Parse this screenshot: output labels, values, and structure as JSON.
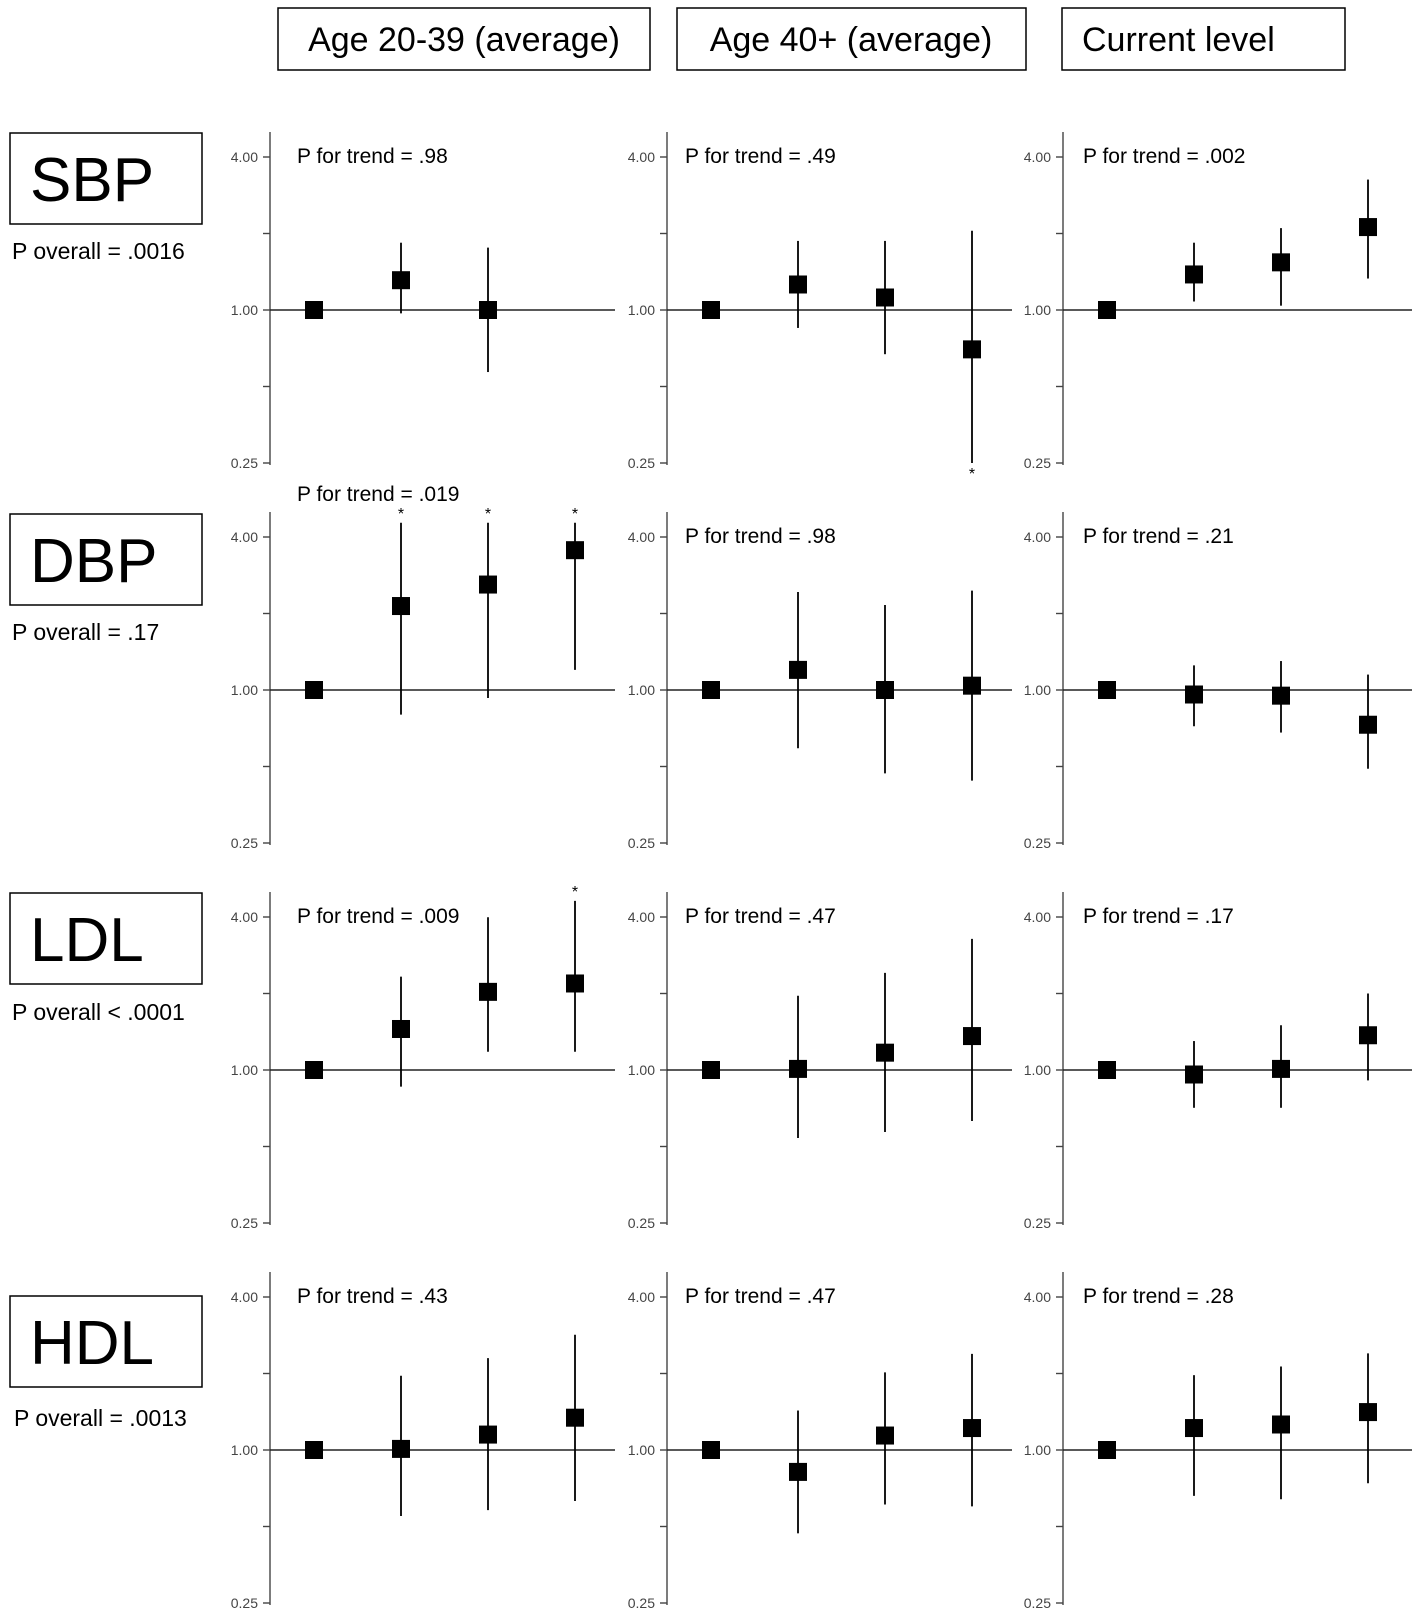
{
  "columns": [
    {
      "label": "Age 20-39 (average)"
    },
    {
      "label": "Age 40+ (average)"
    },
    {
      "label": "Current level"
    }
  ],
  "rows": [
    {
      "label": "SBP",
      "overall": "P overall = .0016"
    },
    {
      "label": "DBP",
      "overall": "P overall = .17"
    },
    {
      "label": "LDL",
      "overall": "P overall < .0001"
    },
    {
      "label": "HDL",
      "overall": "P overall = .0013"
    }
  ],
  "chart_data": {
    "type": "scatter",
    "scale": "log2",
    "ylim": [
      0.25,
      4.0
    ],
    "yticks": [
      "4.00",
      "1.00",
      "0.25"
    ],
    "reference_line": 1.0,
    "panels": [
      {
        "row": 0,
        "col": 0,
        "trend": "P for trend = .98",
        "points": [
          {
            "x": 1,
            "y": 1.0,
            "lo": 1.0,
            "hi": 1.0
          },
          {
            "x": 2,
            "y": 1.31,
            "lo": 0.97,
            "hi": 1.84
          },
          {
            "x": 3,
            "y": 1.0,
            "lo": 0.57,
            "hi": 1.76
          }
        ]
      },
      {
        "row": 0,
        "col": 1,
        "trend": "P for trend = .49",
        "points": [
          {
            "x": 1,
            "y": 1.0,
            "lo": 1.0,
            "hi": 1.0
          },
          {
            "x": 2,
            "y": 1.26,
            "lo": 0.85,
            "hi": 1.87
          },
          {
            "x": 3,
            "y": 1.12,
            "lo": 0.67,
            "hi": 1.87
          },
          {
            "x": 4,
            "y": 0.7,
            "lo": 0.25,
            "hi": 2.05,
            "star_below": true
          }
        ]
      },
      {
        "row": 0,
        "col": 2,
        "trend": "P for trend = .002",
        "points": [
          {
            "x": 1,
            "y": 1.0,
            "lo": 1.0,
            "hi": 1.0
          },
          {
            "x": 2,
            "y": 1.38,
            "lo": 1.08,
            "hi": 1.84
          },
          {
            "x": 3,
            "y": 1.54,
            "lo": 1.04,
            "hi": 2.1
          },
          {
            "x": 4,
            "y": 2.12,
            "lo": 1.33,
            "hi": 3.26
          }
        ]
      },
      {
        "row": 1,
        "col": 0,
        "trend": "P for trend = .019",
        "points": [
          {
            "x": 1,
            "y": 1.0,
            "lo": 1.0,
            "hi": 1.0
          },
          {
            "x": 2,
            "y": 2.14,
            "lo": 0.8,
            "hi": 4.55,
            "star_above": true
          },
          {
            "x": 3,
            "y": 2.6,
            "lo": 0.93,
            "hi": 4.55,
            "star_above": true
          },
          {
            "x": 4,
            "y": 3.55,
            "lo": 1.2,
            "hi": 4.55,
            "star_above": true
          }
        ]
      },
      {
        "row": 1,
        "col": 1,
        "trend": "P for trend = .98",
        "points": [
          {
            "x": 1,
            "y": 1.0,
            "lo": 1.0,
            "hi": 1.0
          },
          {
            "x": 2,
            "y": 1.2,
            "lo": 0.59,
            "hi": 2.43
          },
          {
            "x": 3,
            "y": 1.0,
            "lo": 0.47,
            "hi": 2.16
          },
          {
            "x": 4,
            "y": 1.04,
            "lo": 0.44,
            "hi": 2.46
          }
        ]
      },
      {
        "row": 1,
        "col": 2,
        "trend": "P for trend = .21",
        "points": [
          {
            "x": 1,
            "y": 1.0,
            "lo": 1.0,
            "hi": 1.0
          },
          {
            "x": 2,
            "y": 0.96,
            "lo": 0.72,
            "hi": 1.25
          },
          {
            "x": 3,
            "y": 0.95,
            "lo": 0.68,
            "hi": 1.3
          },
          {
            "x": 4,
            "y": 0.73,
            "lo": 0.49,
            "hi": 1.15
          }
        ]
      },
      {
        "row": 2,
        "col": 0,
        "trend": "P for trend = .009",
        "points": [
          {
            "x": 1,
            "y": 1.0,
            "lo": 1.0,
            "hi": 1.0
          },
          {
            "x": 2,
            "y": 1.45,
            "lo": 0.86,
            "hi": 2.33
          },
          {
            "x": 3,
            "y": 2.03,
            "lo": 1.18,
            "hi": 3.99
          },
          {
            "x": 4,
            "y": 2.19,
            "lo": 1.18,
            "hi": 4.63,
            "star_above": true
          }
        ]
      },
      {
        "row": 2,
        "col": 1,
        "trend": "P for trend = .47",
        "points": [
          {
            "x": 1,
            "y": 1.0,
            "lo": 1.0,
            "hi": 1.0
          },
          {
            "x": 2,
            "y": 1.01,
            "lo": 0.54,
            "hi": 1.96
          },
          {
            "x": 3,
            "y": 1.17,
            "lo": 0.57,
            "hi": 2.41
          },
          {
            "x": 4,
            "y": 1.36,
            "lo": 0.63,
            "hi": 3.28
          }
        ]
      },
      {
        "row": 2,
        "col": 2,
        "trend": "P for trend = .17",
        "points": [
          {
            "x": 1,
            "y": 1.0,
            "lo": 1.0,
            "hi": 1.0
          },
          {
            "x": 2,
            "y": 0.96,
            "lo": 0.71,
            "hi": 1.3
          },
          {
            "x": 3,
            "y": 1.01,
            "lo": 0.71,
            "hi": 1.5
          },
          {
            "x": 4,
            "y": 1.37,
            "lo": 0.91,
            "hi": 2.0
          }
        ]
      },
      {
        "row": 3,
        "col": 0,
        "trend": "P for trend = .43",
        "points": [
          {
            "x": 1,
            "y": 1.0,
            "lo": 1.0,
            "hi": 1.0
          },
          {
            "x": 2,
            "y": 1.01,
            "lo": 0.55,
            "hi": 1.96
          },
          {
            "x": 3,
            "y": 1.15,
            "lo": 0.58,
            "hi": 2.3
          },
          {
            "x": 4,
            "y": 1.34,
            "lo": 0.63,
            "hi": 2.84
          }
        ]
      },
      {
        "row": 3,
        "col": 1,
        "trend": "P for trend = .47",
        "points": [
          {
            "x": 1,
            "y": 1.0,
            "lo": 1.0,
            "hi": 1.0
          },
          {
            "x": 2,
            "y": 0.82,
            "lo": 0.47,
            "hi": 1.43
          },
          {
            "x": 3,
            "y": 1.14,
            "lo": 0.61,
            "hi": 2.02
          },
          {
            "x": 4,
            "y": 1.22,
            "lo": 0.6,
            "hi": 2.39
          }
        ]
      },
      {
        "row": 3,
        "col": 2,
        "trend": "P for trend = .28",
        "points": [
          {
            "x": 1,
            "y": 1.0,
            "lo": 1.0,
            "hi": 1.0
          },
          {
            "x": 2,
            "y": 1.22,
            "lo": 0.66,
            "hi": 1.97
          },
          {
            "x": 3,
            "y": 1.26,
            "lo": 0.64,
            "hi": 2.13
          },
          {
            "x": 4,
            "y": 1.41,
            "lo": 0.74,
            "hi": 2.4
          }
        ]
      }
    ]
  }
}
